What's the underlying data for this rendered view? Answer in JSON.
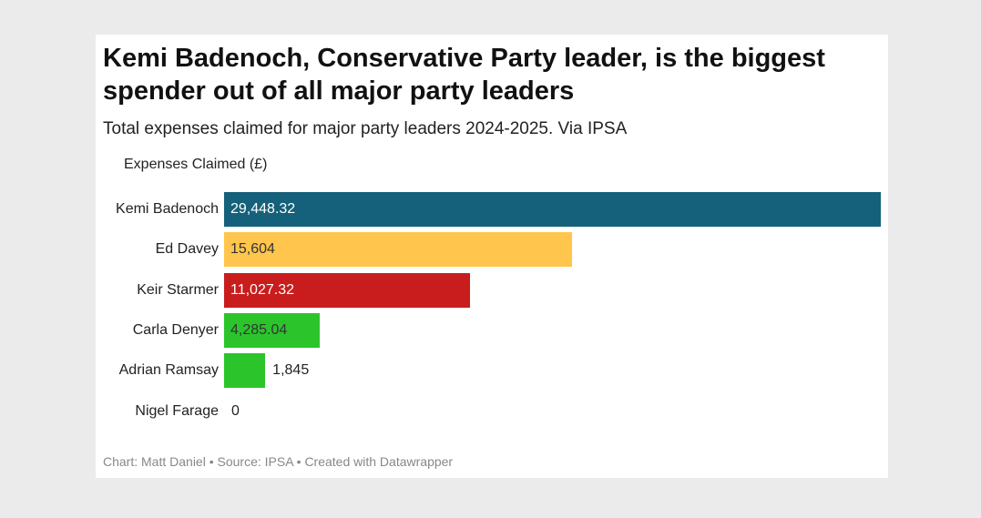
{
  "header": {
    "title": "Kemi Badenoch, Conservative Party leader, is the biggest spender out of all major party leaders",
    "subtitle": "Total expenses claimed for major party leaders 2024-2025. Via IPSA"
  },
  "footer": {
    "text": "Chart: Matt Daniel • Source: IPSA • Created with Datawrapper"
  },
  "chart_data": {
    "type": "bar",
    "orientation": "horizontal",
    "title": "Kemi Badenoch, Conservative Party leader, is the biggest spender out of all major party leaders",
    "subtitle": "Total expenses claimed for major party leaders 2024-2025. Via IPSA",
    "column_header": "Expenses Claimed (£)",
    "categories": [
      "Kemi Badenoch",
      "Ed Davey",
      "Keir Starmer",
      "Carla Denyer",
      "Adrian Ramsay",
      "Nigel Farage"
    ],
    "values": [
      29448.32,
      15604,
      11027.32,
      4285.04,
      1845,
      0
    ],
    "value_labels": [
      "29,448.32",
      "15,604",
      "11,027.32",
      "4,285.04",
      "1,845",
      "0"
    ],
    "colors": [
      "#15607a",
      "#ffc54d",
      "#c91d1d",
      "#2bc52b",
      "#2bc52b",
      "#12b4db"
    ],
    "label_colors": [
      "#ffffff",
      "#333333",
      "#ffffff",
      "#333333",
      "#333333",
      "#333333"
    ],
    "xlim": [
      0,
      29448.32
    ],
    "grid": false,
    "legend": "none"
  }
}
